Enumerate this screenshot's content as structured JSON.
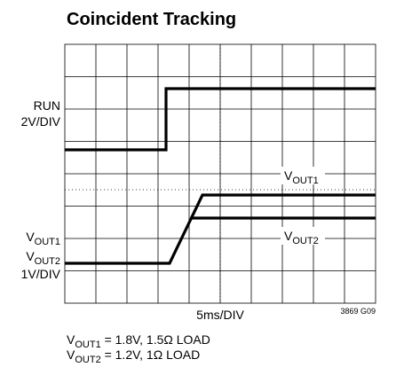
{
  "chart_data": {
    "type": "scope",
    "title": "Coincident Tracking",
    "channel_labels": {
      "run": {
        "name": "RUN",
        "scale": "2V/DIV"
      },
      "vout": {
        "names": [
          {
            "main": "V",
            "sub": "OUT1"
          },
          {
            "main": "V",
            "sub": "OUT2"
          }
        ],
        "scale": "1V/DIV"
      }
    },
    "trace_labels": [
      {
        "main": "V",
        "sub": "OUT1"
      },
      {
        "main": "V",
        "sub": "OUT2"
      }
    ],
    "x_label": "5ms/DIV",
    "figure_id": "3869 G09",
    "notes": [
      {
        "main": "V",
        "sub": "OUT1",
        "rest": " = 1.8V, 1.5Ω LOAD"
      },
      {
        "main": "V",
        "sub": "OUT2",
        "rest": " = 1.2V, 1Ω LOAD"
      }
    ]
  }
}
